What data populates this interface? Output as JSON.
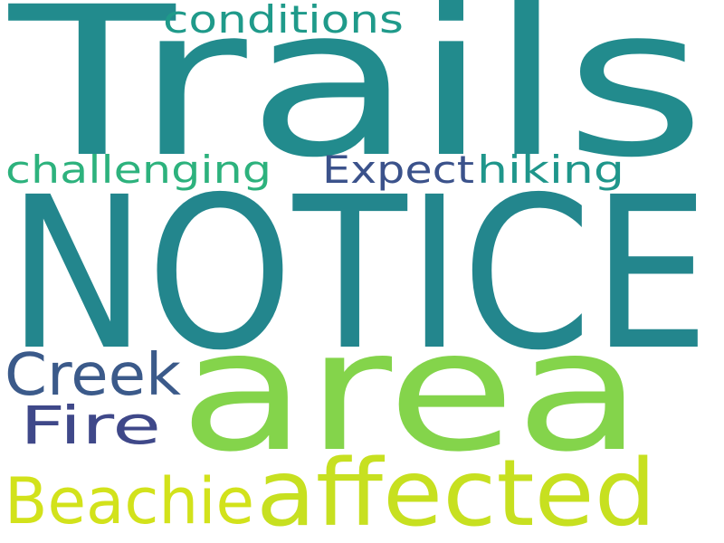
{
  "words": [
    {
      "text": "Trails",
      "color": "#228b8d"
    },
    {
      "text": "NOTICE",
      "color": "#23868d"
    },
    {
      "text": "area",
      "color": "#84d44b"
    },
    {
      "text": "affected",
      "color": "#c7e020"
    },
    {
      "text": "Beachie",
      "color": "#d2e21b"
    },
    {
      "text": "Creek",
      "color": "#3b5a8a"
    },
    {
      "text": "Fire",
      "color": "#3f4889"
    },
    {
      "text": "conditions",
      "color": "#1f9a8a"
    },
    {
      "text": "challenging",
      "color": "#2db27d"
    },
    {
      "text": "Expect",
      "color": "#3b528b"
    },
    {
      "text": "hiking",
      "color": "#1f968b"
    }
  ]
}
